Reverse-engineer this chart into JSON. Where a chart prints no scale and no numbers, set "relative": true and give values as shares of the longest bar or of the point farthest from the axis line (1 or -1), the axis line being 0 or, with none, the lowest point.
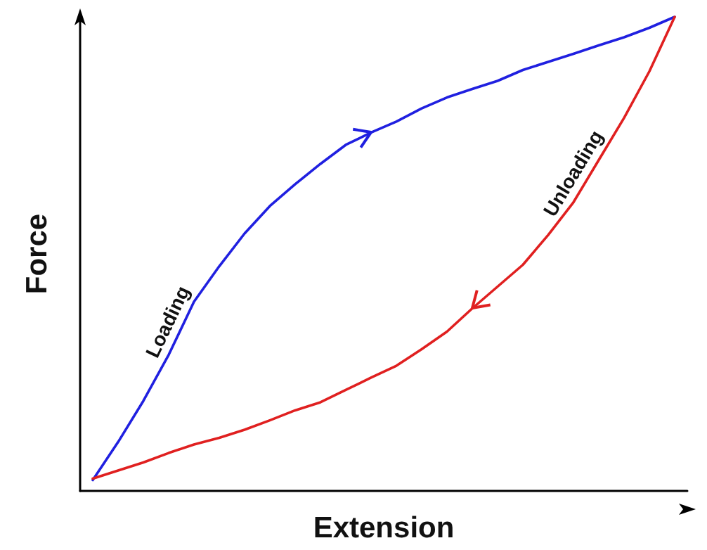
{
  "chart_data": {
    "type": "line",
    "relative": true,
    "xlabel": "Extension",
    "ylabel": "Force",
    "legend": false,
    "grid": false,
    "marker": "none",
    "line_style": "solid",
    "tick_labels": false,
    "categories": [
      null,
      null,
      null,
      null,
      null,
      null,
      null,
      null,
      null,
      null,
      null,
      null,
      null,
      null,
      null,
      null,
      null,
      null,
      null,
      null,
      null,
      null,
      null,
      null
    ],
    "series": [
      {
        "name": "Loading",
        "color": "#2020e0",
        "values": [
          0.023,
          0.103,
          0.19,
          0.287,
          0.399,
          0.474,
          0.543,
          0.601,
          0.647,
          0.69,
          0.73,
          0.756,
          0.779,
          0.807,
          0.83,
          0.848,
          0.865,
          0.888,
          0.905,
          0.922,
          0.94,
          0.957,
          0.977,
          1
        ]
      },
      {
        "name": "Unloading",
        "color": "#e02020",
        "values": [
          0.026,
          0.043,
          0.06,
          0.08,
          0.098,
          0.112,
          0.129,
          0.149,
          0.17,
          0.187,
          0.213,
          0.239,
          0.264,
          0.299,
          0.336,
          0.385,
          0.431,
          0.477,
          0.54,
          0.609,
          0.698,
          0.787,
          0.885,
          1
        ]
      }
    ]
  }
}
